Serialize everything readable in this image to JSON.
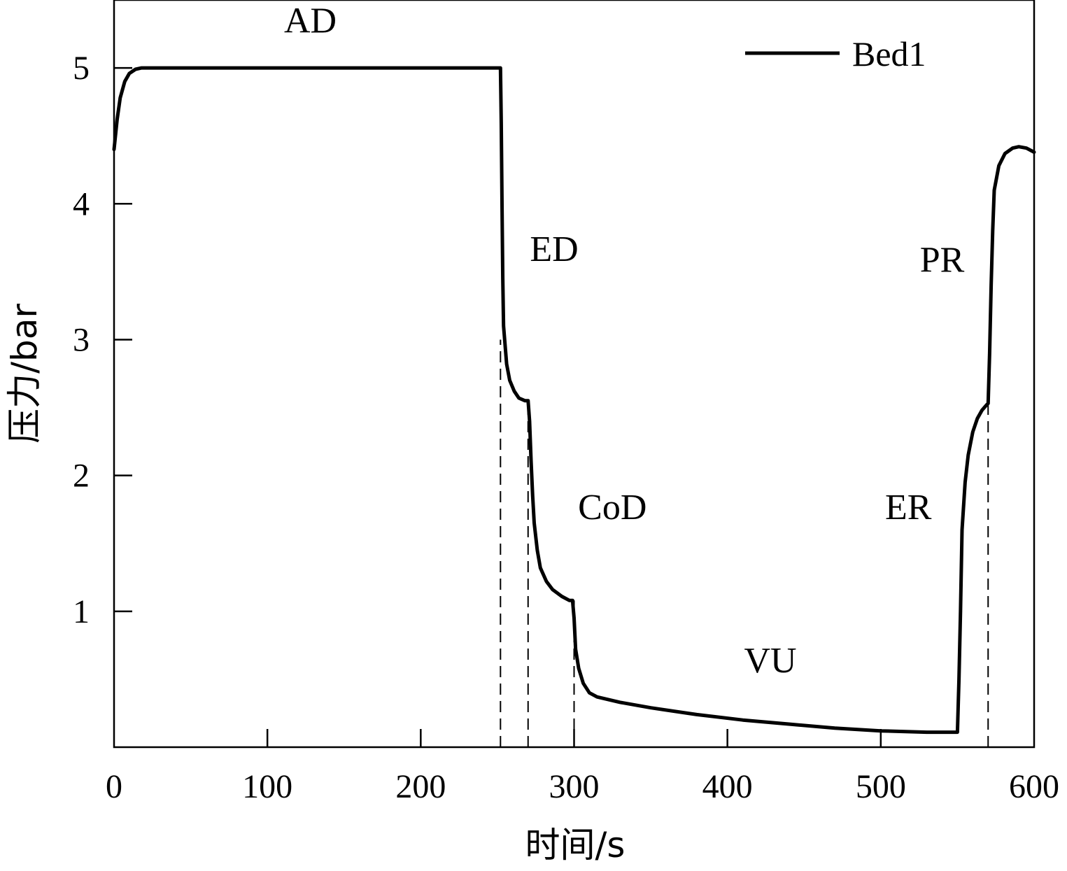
{
  "chart_data": {
    "type": "line",
    "xlabel": "时间/s",
    "ylabel": "压力/bar",
    "xlim": [
      0,
      600
    ],
    "ylim": [
      0,
      5.5
    ],
    "x_ticks": [
      0,
      100,
      200,
      300,
      400,
      500,
      600
    ],
    "y_ticks": [
      1,
      2,
      3,
      4,
      5
    ],
    "x_tick_labels": [
      "0",
      "100",
      "200",
      "300",
      "400",
      "500",
      "600"
    ],
    "y_tick_labels": [
      "1",
      "2",
      "3",
      "4",
      "5"
    ],
    "grid": false,
    "legend": {
      "position": "top-right",
      "entries": [
        "Bed1"
      ]
    },
    "series": [
      {
        "name": "Bed1",
        "color": "#000000",
        "style": "solid",
        "points": [
          [
            0,
            4.4
          ],
          [
            2,
            4.62
          ],
          [
            4,
            4.78
          ],
          [
            7,
            4.9
          ],
          [
            10,
            4.96
          ],
          [
            14,
            4.99
          ],
          [
            18,
            5.0
          ],
          [
            100,
            5.0
          ],
          [
            200,
            5.0
          ],
          [
            252,
            5.0
          ],
          [
            252.5,
            4.6
          ],
          [
            253,
            4.0
          ],
          [
            253.5,
            3.45
          ],
          [
            254,
            3.1
          ],
          [
            256,
            2.82
          ],
          [
            258,
            2.7
          ],
          [
            261,
            2.62
          ],
          [
            264,
            2.57
          ],
          [
            268,
            2.55
          ],
          [
            270,
            2.55
          ],
          [
            271,
            2.4
          ],
          [
            272,
            2.1
          ],
          [
            273,
            1.85
          ],
          [
            274,
            1.65
          ],
          [
            276,
            1.45
          ],
          [
            278,
            1.32
          ],
          [
            282,
            1.22
          ],
          [
            286,
            1.16
          ],
          [
            292,
            1.11
          ],
          [
            297,
            1.08
          ],
          [
            299,
            1.08
          ],
          [
            300,
            0.95
          ],
          [
            301,
            0.72
          ],
          [
            303,
            0.58
          ],
          [
            306,
            0.47
          ],
          [
            310,
            0.4
          ],
          [
            315,
            0.37
          ],
          [
            330,
            0.33
          ],
          [
            350,
            0.29
          ],
          [
            380,
            0.24
          ],
          [
            410,
            0.2
          ],
          [
            440,
            0.17
          ],
          [
            470,
            0.14
          ],
          [
            500,
            0.12
          ],
          [
            530,
            0.11
          ],
          [
            550,
            0.11
          ],
          [
            551,
            0.5
          ],
          [
            552,
            1.0
          ],
          [
            553,
            1.6
          ],
          [
            555,
            1.95
          ],
          [
            557,
            2.15
          ],
          [
            560,
            2.32
          ],
          [
            563,
            2.42
          ],
          [
            566,
            2.48
          ],
          [
            569,
            2.52
          ],
          [
            570,
            2.53
          ],
          [
            571,
            2.9
          ],
          [
            572,
            3.4
          ],
          [
            573,
            3.8
          ],
          [
            574,
            4.1
          ],
          [
            577,
            4.28
          ],
          [
            581,
            4.37
          ],
          [
            586,
            4.41
          ],
          [
            590,
            4.42
          ],
          [
            595,
            4.41
          ],
          [
            600,
            4.38
          ]
        ]
      }
    ],
    "reference_lines": [
      {
        "x": 252,
        "y_top": 3.0,
        "style": "dashed"
      },
      {
        "x": 270,
        "y_top": 2.55,
        "style": "dashed"
      },
      {
        "x": 300,
        "y_top": 1.08,
        "style": "dashed"
      },
      {
        "x": 570,
        "y_top": 2.53,
        "style": "dashed"
      }
    ],
    "annotations": [
      {
        "text": "AD",
        "x": 128,
        "y": 5.26
      },
      {
        "text": "ED",
        "x": 287,
        "y": 3.58
      },
      {
        "text": "CoD",
        "x": 325,
        "y": 1.68
      },
      {
        "text": "VU",
        "x": 428,
        "y": 0.55
      },
      {
        "text": "PR",
        "x": 540,
        "y": 3.5
      },
      {
        "text": "ER",
        "x": 518,
        "y": 1.68
      }
    ]
  }
}
